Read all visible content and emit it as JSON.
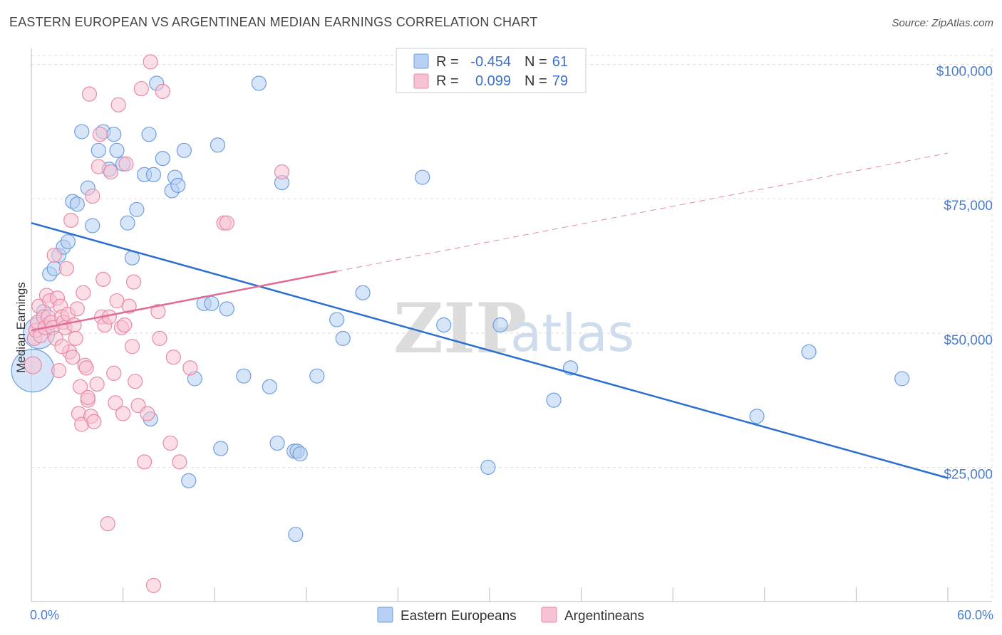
{
  "title": "EASTERN EUROPEAN VS ARGENTINEAN MEDIAN EARNINGS CORRELATION CHART",
  "source": "Source: ZipAtlas.com",
  "watermark": {
    "zip": "ZIP",
    "atlas": "atlas"
  },
  "legend": {
    "rows": [
      {
        "r_label": "R =",
        "r_value": "-0.454",
        "n_label": "N =",
        "n_value": "61"
      },
      {
        "r_label": "R =",
        "r_value": "0.099",
        "n_label": "N =",
        "n_value": "79"
      }
    ]
  },
  "bottom_legend": [
    "Eastern Europeans",
    "Argentineans"
  ],
  "colors": {
    "blue_fill": "#b7d0f3",
    "blue_stroke": "#6e9ee0",
    "blue_line": "#2b6fcf",
    "pink_fill": "#f7c3d2",
    "pink_stroke": "#e88aa8",
    "pink_line": "#e06c93",
    "tick_text": "#4a7ccf",
    "grid": "#dddddd"
  },
  "chart_data": {
    "type": "scatter",
    "xlabel": "",
    "ylabel": "Median Earnings",
    "xlim": [
      0,
      60
    ],
    "ylim": [
      0,
      103000
    ],
    "x_tick_labels": [
      "0.0%",
      "60.0%"
    ],
    "y_ticks": [
      {
        "value": 25000,
        "label": "$25,000"
      },
      {
        "value": 50000,
        "label": "$50,000"
      },
      {
        "value": 75000,
        "label": "$75,000"
      },
      {
        "value": 100000,
        "label": "$100,000"
      }
    ],
    "grid": true,
    "legend_position": "top-center",
    "series": [
      {
        "name": "Eastern Europeans",
        "points": [
          [
            0.1,
            43000,
            30
          ],
          [
            0.5,
            50000,
            22
          ],
          [
            0.8,
            54000,
            10
          ],
          [
            1.2,
            61000,
            10
          ],
          [
            1.5,
            62000,
            10
          ],
          [
            1.8,
            64500,
            10
          ],
          [
            2.1,
            66000,
            10
          ],
          [
            2.4,
            67000,
            10
          ],
          [
            2.7,
            74500,
            10
          ],
          [
            3.0,
            74000,
            10
          ],
          [
            3.3,
            87500,
            10
          ],
          [
            3.7,
            77000,
            10
          ],
          [
            4.0,
            70000,
            10
          ],
          [
            4.4,
            84000,
            10
          ],
          [
            4.7,
            87500,
            10
          ],
          [
            5.1,
            80500,
            10
          ],
          [
            5.4,
            87000,
            10
          ],
          [
            5.6,
            84000,
            10
          ],
          [
            6.0,
            81500,
            10
          ],
          [
            6.3,
            70500,
            10
          ],
          [
            6.6,
            64000,
            10
          ],
          [
            6.9,
            73000,
            10
          ],
          [
            7.4,
            79500,
            10
          ],
          [
            7.7,
            87000,
            10
          ],
          [
            7.8,
            34000,
            10
          ],
          [
            8.0,
            79500,
            10
          ],
          [
            8.2,
            96500,
            10
          ],
          [
            8.6,
            82500,
            10
          ],
          [
            9.2,
            76500,
            10
          ],
          [
            9.4,
            79000,
            10
          ],
          [
            9.6,
            77500,
            10
          ],
          [
            10.0,
            84000,
            10
          ],
          [
            10.3,
            22500,
            10
          ],
          [
            10.7,
            41500,
            10
          ],
          [
            11.3,
            55500,
            10
          ],
          [
            11.8,
            55500,
            10
          ],
          [
            12.2,
            85000,
            10
          ],
          [
            12.4,
            28500,
            10
          ],
          [
            12.8,
            54500,
            10
          ],
          [
            13.9,
            42000,
            10
          ],
          [
            14.9,
            96500,
            10
          ],
          [
            15.6,
            40000,
            10
          ],
          [
            16.1,
            29500,
            10
          ],
          [
            16.4,
            78000,
            10
          ],
          [
            17.2,
            28000,
            10
          ],
          [
            17.3,
            12500,
            10
          ],
          [
            17.4,
            28000,
            10
          ],
          [
            17.6,
            27500,
            10
          ],
          [
            18.7,
            42000,
            10
          ],
          [
            20.0,
            52500,
            10
          ],
          [
            20.4,
            49000,
            10
          ],
          [
            21.7,
            57500,
            10
          ],
          [
            25.6,
            79000,
            10
          ],
          [
            27.0,
            51500,
            10
          ],
          [
            29.9,
            25000,
            10
          ],
          [
            30.7,
            51500,
            10
          ],
          [
            34.2,
            37500,
            10
          ],
          [
            35.3,
            43500,
            10
          ],
          [
            47.5,
            34500,
            10
          ],
          [
            50.9,
            46500,
            10
          ],
          [
            57.0,
            41500,
            10
          ]
        ]
      },
      {
        "name": "Argentineans",
        "points": [
          [
            0.1,
            44000,
            12
          ],
          [
            0.2,
            49000,
            10
          ],
          [
            0.3,
            50500,
            10
          ],
          [
            0.4,
            52000,
            10
          ],
          [
            0.5,
            55000,
            10
          ],
          [
            0.6,
            49500,
            10
          ],
          [
            0.8,
            53000,
            10
          ],
          [
            0.9,
            51000,
            10
          ],
          [
            1.0,
            57000,
            10
          ],
          [
            1.1,
            53000,
            10
          ],
          [
            1.2,
            56000,
            10
          ],
          [
            1.3,
            52000,
            10
          ],
          [
            1.4,
            51000,
            10
          ],
          [
            1.5,
            64500,
            10
          ],
          [
            1.6,
            49000,
            10
          ],
          [
            1.7,
            56500,
            10
          ],
          [
            1.8,
            43000,
            10
          ],
          [
            1.9,
            55000,
            10
          ],
          [
            2.0,
            53000,
            10
          ],
          [
            2.1,
            52000,
            10
          ],
          [
            2.2,
            51000,
            10
          ],
          [
            2.3,
            62000,
            10
          ],
          [
            2.4,
            53500,
            10
          ],
          [
            2.5,
            46500,
            10
          ],
          [
            2.6,
            71000,
            10
          ],
          [
            2.7,
            45500,
            10
          ],
          [
            2.8,
            51500,
            10
          ],
          [
            2.9,
            49000,
            10
          ],
          [
            3.0,
            54500,
            10
          ],
          [
            3.1,
            35000,
            10
          ],
          [
            3.2,
            40000,
            10
          ],
          [
            3.3,
            33000,
            10
          ],
          [
            3.4,
            57500,
            10
          ],
          [
            3.5,
            44000,
            10
          ],
          [
            3.6,
            43500,
            10
          ],
          [
            3.7,
            37500,
            10
          ],
          [
            3.8,
            94500,
            10
          ],
          [
            3.9,
            34500,
            10
          ],
          [
            4.0,
            75500,
            10
          ],
          [
            4.1,
            33500,
            10
          ],
          [
            4.3,
            40500,
            10
          ],
          [
            4.4,
            81000,
            10
          ],
          [
            4.5,
            87000,
            10
          ],
          [
            4.6,
            53000,
            10
          ],
          [
            4.7,
            60000,
            10
          ],
          [
            4.8,
            51500,
            10
          ],
          [
            5.0,
            14500,
            10
          ],
          [
            5.2,
            80000,
            10
          ],
          [
            5.4,
            42500,
            10
          ],
          [
            5.5,
            37000,
            10
          ],
          [
            5.6,
            56000,
            10
          ],
          [
            5.7,
            92500,
            10
          ],
          [
            5.9,
            51000,
            10
          ],
          [
            6.0,
            35000,
            10
          ],
          [
            6.2,
            81500,
            10
          ],
          [
            6.4,
            55000,
            10
          ],
          [
            6.6,
            47500,
            10
          ],
          [
            6.7,
            59500,
            10
          ],
          [
            6.8,
            41000,
            10
          ],
          [
            7.0,
            36500,
            10
          ],
          [
            7.2,
            95500,
            10
          ],
          [
            7.4,
            26000,
            10
          ],
          [
            7.6,
            35000,
            10
          ],
          [
            7.8,
            100500,
            10
          ],
          [
            8.0,
            3000,
            10
          ],
          [
            8.3,
            54000,
            10
          ],
          [
            8.4,
            49000,
            10
          ],
          [
            8.6,
            95000,
            10
          ],
          [
            9.1,
            29500,
            10
          ],
          [
            9.3,
            45500,
            10
          ],
          [
            9.7,
            26000,
            10
          ],
          [
            10.4,
            43500,
            10
          ],
          [
            12.6,
            70500,
            10
          ],
          [
            12.8,
            70500,
            10
          ],
          [
            16.4,
            80000,
            10
          ],
          [
            5.1,
            53000,
            10
          ],
          [
            6.1,
            51500,
            10
          ],
          [
            3.7,
            38000,
            10
          ],
          [
            2.0,
            47500,
            10
          ]
        ]
      }
    ],
    "trend_lines": [
      {
        "series": "Eastern Europeans",
        "x": [
          0,
          60
        ],
        "y": [
          70500,
          23000
        ],
        "style": "solid"
      },
      {
        "series": "Argentineans",
        "x": [
          0,
          20
        ],
        "y": [
          50500,
          61500
        ],
        "style": "solid"
      },
      {
        "series": "Argentineans",
        "x": [
          20,
          60
        ],
        "y": [
          61500,
          83500
        ],
        "style": "dashed"
      }
    ]
  }
}
